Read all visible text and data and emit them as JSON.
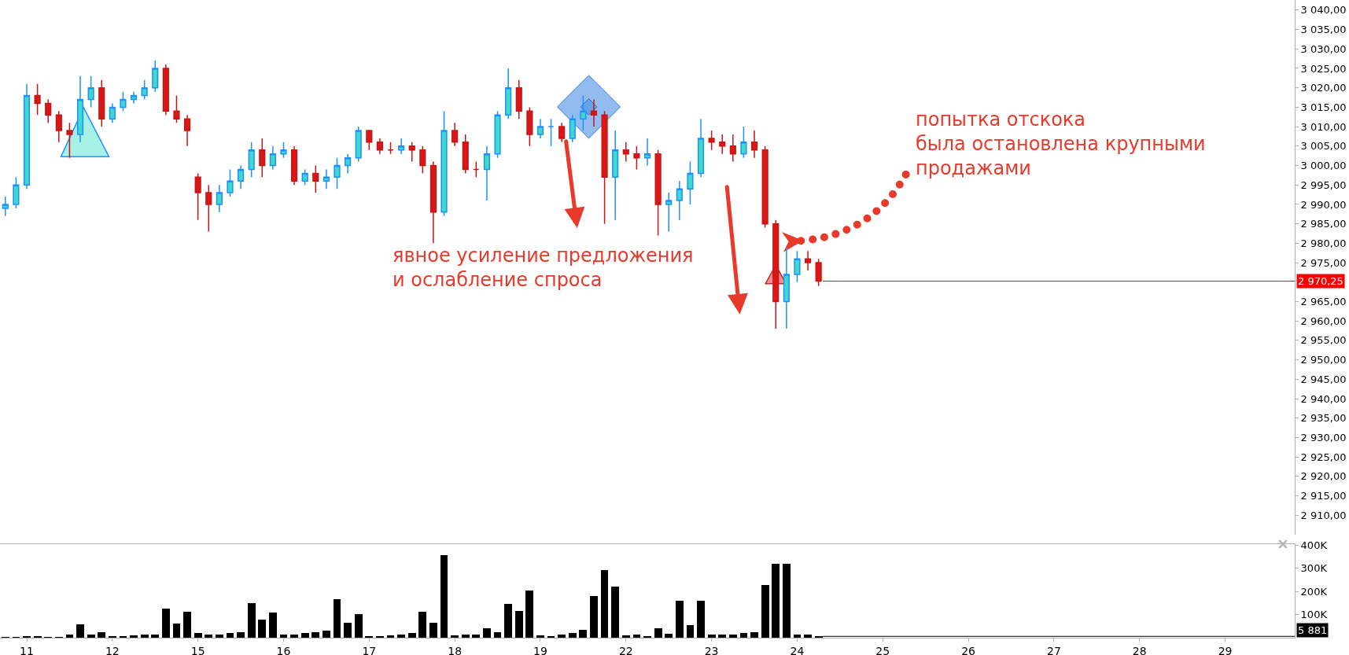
{
  "chart_data": [
    {
      "type": "candlestick",
      "categories": [
        null,
        null,
        "11",
        null,
        null,
        null,
        null,
        null,
        null,
        null,
        "12",
        null,
        null,
        null,
        null,
        null,
        null,
        null,
        "15",
        null,
        null,
        null,
        null,
        null,
        null,
        null,
        "16",
        null,
        null,
        null,
        null,
        null,
        null,
        null,
        "17",
        null,
        null,
        null,
        null,
        null,
        null,
        null,
        "18",
        null,
        null,
        null,
        null,
        null,
        null,
        null,
        "19",
        null,
        null,
        null,
        null,
        null,
        null,
        null,
        "22",
        null,
        null,
        null,
        null,
        null,
        null,
        null,
        "23",
        null,
        null,
        null,
        null,
        null,
        null,
        null,
        "24",
        null,
        null,
        null,
        null,
        null,
        null,
        null,
        "25",
        null,
        null,
        null,
        null,
        null,
        null,
        null,
        "26",
        null,
        null,
        null,
        null,
        null,
        null,
        null,
        "27",
        null,
        null,
        null,
        null,
        null,
        null,
        null,
        "28",
        null,
        null,
        null,
        null,
        null,
        null,
        null,
        "29",
        null,
        null,
        null,
        null,
        null,
        null
      ],
      "ohlc": [
        [
          2989,
          2992,
          2987,
          2990
        ],
        [
          2990,
          2997,
          2989,
          2995
        ],
        [
          2995,
          3021,
          2994,
          3018
        ],
        [
          3018,
          3021,
          3013,
          3016
        ],
        [
          3016,
          3017,
          3011,
          3013
        ],
        [
          3013,
          3014,
          3006,
          3009
        ],
        [
          3009,
          3011,
          3002,
          3008
        ],
        [
          3008,
          3023,
          3006,
          3017
        ],
        [
          3017,
          3023,
          3015,
          3020
        ],
        [
          3020,
          3022,
          3010,
          3012
        ],
        [
          3012,
          3016,
          3011,
          3015
        ],
        [
          3015,
          3019,
          3014,
          3017
        ],
        [
          3017,
          3019,
          3016,
          3018
        ],
        [
          3018,
          3022,
          3017,
          3020
        ],
        [
          3020,
          3027,
          3019,
          3025
        ],
        [
          3025,
          3026,
          3013,
          3014
        ],
        [
          3014,
          3018,
          3011,
          3012
        ],
        [
          3012,
          3013,
          3005,
          3009
        ],
        [
          2997,
          2998,
          2986,
          2993
        ],
        [
          2993,
          2995,
          2983,
          2990
        ],
        [
          2990,
          2995,
          2988,
          2993
        ],
        [
          2993,
          2999,
          2992,
          2996
        ],
        [
          2996,
          3000,
          2994,
          2999
        ],
        [
          2999,
          3006,
          2997,
          3004
        ],
        [
          3004,
          3007,
          2997,
          3000
        ],
        [
          3000,
          3005,
          2999,
          3003
        ],
        [
          3003,
          3006,
          3002,
          3004
        ],
        [
          3004,
          3005,
          2995,
          2996
        ],
        [
          2996,
          2999,
          2995,
          2998
        ],
        [
          2998,
          3000,
          2993,
          2996
        ],
        [
          2996,
          2999,
          2994,
          2997
        ],
        [
          2997,
          3002,
          2994,
          3000
        ],
        [
          3000,
          3003,
          2998,
          3002
        ],
        [
          3002,
          3010,
          3001,
          3009
        ],
        [
          3009,
          3009,
          3004,
          3006
        ],
        [
          3006,
          3007,
          3003,
          3004
        ],
        [
          3004,
          3006,
          3003,
          3004
        ],
        [
          3004,
          3007,
          3003,
          3005
        ],
        [
          3005,
          3006,
          3001,
          3004
        ],
        [
          3004,
          3005,
          2998,
          3000
        ],
        [
          3000,
          3001,
          2980,
          2988
        ],
        [
          2988,
          3014,
          2987,
          3009
        ],
        [
          3009,
          3011,
          3005,
          3006
        ],
        [
          3006,
          3008,
          2998,
          2999
        ],
        [
          2999,
          3001,
          2997,
          2999
        ],
        [
          2999,
          3005,
          2991,
          3003
        ],
        [
          3003,
          3014,
          3002,
          3013
        ],
        [
          3013,
          3025,
          3012,
          3020
        ],
        [
          3020,
          3022,
          3012,
          3014
        ],
        [
          3014,
          3015,
          3005,
          3008
        ],
        [
          3008,
          3012,
          3007,
          3010
        ],
        [
          3010,
          3012,
          3005,
          3010
        ],
        [
          3010,
          3011,
          3006,
          3007
        ],
        [
          3007,
          3013,
          3006,
          3012
        ],
        [
          3012,
          3018,
          3009,
          3014
        ],
        [
          3014,
          3017,
          3010,
          3013
        ],
        [
          3013,
          3014,
          2985,
          2997
        ],
        [
          2997,
          3009,
          2986,
          3004
        ],
        [
          3004,
          3006,
          3001,
          3003
        ],
        [
          3003,
          3005,
          2999,
          3002
        ],
        [
          3002,
          3007,
          3000,
          3003
        ],
        [
          3003,
          3004,
          2982,
          2990
        ],
        [
          2990,
          2993,
          2983,
          2991
        ],
        [
          2991,
          2996,
          2986,
          2994
        ],
        [
          2994,
          3001,
          2990,
          2998
        ],
        [
          2998,
          3012,
          2997,
          3007
        ],
        [
          3007,
          3009,
          3004,
          3006
        ],
        [
          3006,
          3008,
          3003,
          3005
        ],
        [
          3005,
          3008,
          3001,
          3003
        ],
        [
          3003,
          3010,
          3002,
          3006
        ],
        [
          3006,
          3009,
          3002,
          3004
        ],
        [
          3004,
          3005,
          2984,
          2985
        ],
        [
          2985,
          2986,
          2958,
          2965
        ],
        [
          2965,
          2979,
          2958,
          2972
        ],
        [
          2972,
          2978,
          2970,
          2976
        ],
        [
          2976,
          2978,
          2973,
          2975
        ],
        [
          2975,
          2976,
          2969,
          2970.25
        ],
        null,
        null,
        null,
        null,
        null,
        null,
        null,
        null,
        null,
        null,
        null,
        null,
        null,
        null,
        null,
        null,
        null,
        null,
        null,
        null,
        null,
        null,
        null,
        null,
        null,
        null,
        null,
        null,
        null,
        null,
        null,
        null,
        null,
        null,
        null,
        null,
        null,
        null,
        null,
        null,
        null,
        null,
        null,
        null
      ],
      "ylim": [
        2905,
        3042.6
      ],
      "yticks": [
        {
          "value": 2910,
          "label": "2 910,00"
        },
        {
          "value": 2915,
          "label": "2 915,00"
        },
        {
          "value": 2920,
          "label": "2 920,00"
        },
        {
          "value": 2925,
          "label": "2 925,00"
        },
        {
          "value": 2930,
          "label": "2 930,00"
        },
        {
          "value": 2935,
          "label": "2 935,00"
        },
        {
          "value": 2940,
          "label": "2 940,00"
        },
        {
          "value": 2945,
          "label": "2 945,00"
        },
        {
          "value": 2950,
          "label": "2 950,00"
        },
        {
          "value": 2955,
          "label": "2 955,00"
        },
        {
          "value": 2960,
          "label": "2 960,00"
        },
        {
          "value": 2965,
          "label": "2 965,00"
        },
        {
          "value": 2975,
          "label": "2 975,00"
        },
        {
          "value": 2980,
          "label": "2 980,00"
        },
        {
          "value": 2985,
          "label": "2 985,00"
        },
        {
          "value": 2990,
          "label": "2 990,00"
        },
        {
          "value": 2995,
          "label": "2 995,00"
        },
        {
          "value": 3000,
          "label": "3 000,00"
        },
        {
          "value": 3005,
          "label": "3 005,00"
        },
        {
          "value": 3010,
          "label": "3 010,00"
        },
        {
          "value": 3015,
          "label": "3 015,00"
        },
        {
          "value": 3020,
          "label": "3 020,00"
        },
        {
          "value": 3025,
          "label": "3 025,00"
        },
        {
          "value": 3030,
          "label": "3 030,00"
        },
        {
          "value": 3035,
          "label": "3 035,00"
        },
        {
          "value": 3040,
          "label": "3 040,00"
        }
      ],
      "tick_labels": "y",
      "ref_lines": [
        {
          "axis": "y",
          "value": 2970.25,
          "label": "2 970,25",
          "color": "#ff0000"
        }
      ],
      "annotations": [
        "явное усиление предложения\nи ослабление спроса",
        "попытка отскока\nбыла остановлена крупными\nпродажами"
      ]
    },
    {
      "type": "bar",
      "categories": [
        null,
        null,
        "11",
        null,
        null,
        null,
        null,
        null,
        null,
        null,
        "12",
        null,
        null,
        null,
        null,
        null,
        null,
        null,
        "15",
        null,
        null,
        null,
        null,
        null,
        null,
        null,
        "16",
        null,
        null,
        null,
        null,
        null,
        null,
        null,
        "17",
        null,
        null,
        null,
        null,
        null,
        null,
        null,
        "18",
        null,
        null,
        null,
        null,
        null,
        null,
        null,
        "19",
        null,
        null,
        null,
        null,
        null,
        null,
        null,
        "22",
        null,
        null,
        null,
        null,
        null,
        null,
        null,
        "23",
        null,
        null,
        null,
        null,
        null,
        null,
        null,
        "24",
        null,
        null,
        null,
        null,
        null,
        null,
        null,
        "25",
        null,
        null,
        null,
        null,
        null,
        null,
        null,
        "26",
        null,
        null,
        null,
        null,
        null,
        null,
        null,
        "27",
        null,
        null,
        null,
        null,
        null,
        null,
        null,
        "28",
        null,
        null,
        null,
        null,
        null,
        null,
        null,
        "29",
        null,
        null,
        null,
        null,
        null,
        null
      ],
      "values": [
        4,
        5,
        8,
        6,
        5,
        5,
        12,
        57,
        15,
        25,
        8,
        8,
        10,
        12,
        15,
        126,
        62,
        114,
        20,
        12,
        12,
        20,
        25,
        150,
        78,
        108,
        15,
        15,
        20,
        25,
        30,
        166,
        66,
        103,
        8,
        8,
        10,
        15,
        20,
        114,
        66,
        357,
        10,
        12,
        15,
        42,
        25,
        145,
        115,
        203,
        10,
        8,
        15,
        20,
        35,
        180,
        294,
        222,
        10,
        12,
        8,
        42,
        18,
        160,
        55,
        160,
        15,
        12,
        15,
        20,
        25,
        228,
        321,
        321,
        12,
        12,
        5.881,
        null,
        null,
        null,
        null,
        null,
        null,
        null,
        null,
        null,
        null,
        null,
        null,
        null,
        null,
        null,
        null,
        null,
        null,
        null,
        null,
        null,
        null,
        null,
        null,
        null,
        null,
        null,
        null,
        null,
        null,
        null,
        null,
        null,
        null,
        null,
        null,
        null,
        null,
        null,
        null,
        null,
        null,
        null,
        null
      ],
      "color": "#000000",
      "ylim": [
        0,
        405
      ],
      "yticks": [
        {
          "value": 100,
          "label": "100K"
        },
        {
          "value": 200,
          "label": "200K"
        },
        {
          "value": 300,
          "label": "300K"
        },
        {
          "value": 400,
          "label": "400K"
        }
      ],
      "ref_lines": [
        {
          "axis": "y",
          "value": 5.881,
          "label": "5 881",
          "color": "#000000"
        }
      ]
    }
  ]
}
